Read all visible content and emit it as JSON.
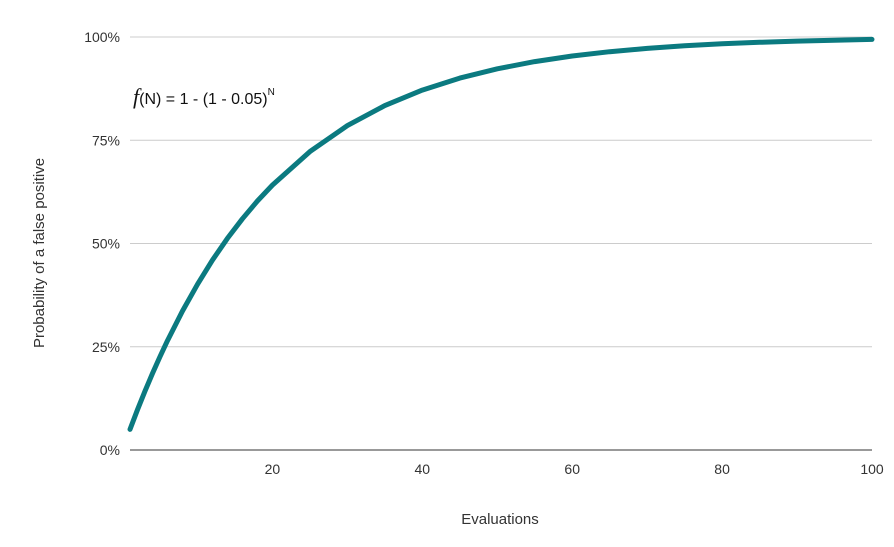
{
  "chart_data": {
    "type": "line",
    "title": "",
    "xlabel": "Evaluations",
    "ylabel": "Probability of a false positive",
    "xlim": [
      1,
      100
    ],
    "ylim": [
      0,
      1
    ],
    "x_ticks": [
      20,
      40,
      60,
      80,
      100
    ],
    "x_tick_labels": [
      "20",
      "40",
      "60",
      "80",
      "100"
    ],
    "y_ticks": [
      0,
      0.25,
      0.5,
      0.75,
      1
    ],
    "y_tick_labels": [
      "0%",
      "25%",
      "50%",
      "75%",
      "100%"
    ],
    "grid": "horizontal",
    "legend": "none",
    "series": [
      {
        "color": "#0b7a80",
        "formula": "1 - (1 - 0.05)^N",
        "x": [
          1,
          2,
          3,
          4,
          5,
          6,
          8,
          10,
          12,
          14,
          16,
          18,
          20,
          25,
          30,
          35,
          40,
          45,
          50,
          55,
          60,
          65,
          70,
          75,
          80,
          85,
          90,
          95,
          100
        ],
        "y": [
          0.05,
          0.0975,
          0.1426,
          0.1855,
          0.2262,
          0.2649,
          0.3366,
          0.4013,
          0.4596,
          0.5123,
          0.5599,
          0.6028,
          0.6415,
          0.7226,
          0.7854,
          0.834,
          0.8715,
          0.9006,
          0.9231,
          0.9405,
          0.9539,
          0.9643,
          0.9724,
          0.9787,
          0.9835,
          0.9872,
          0.9901,
          0.9923,
          0.9941
        ]
      }
    ],
    "annotation": {
      "prefix": "f",
      "text": "(N) = 1 - (1  - 0.05)",
      "superscript": "N"
    }
  }
}
